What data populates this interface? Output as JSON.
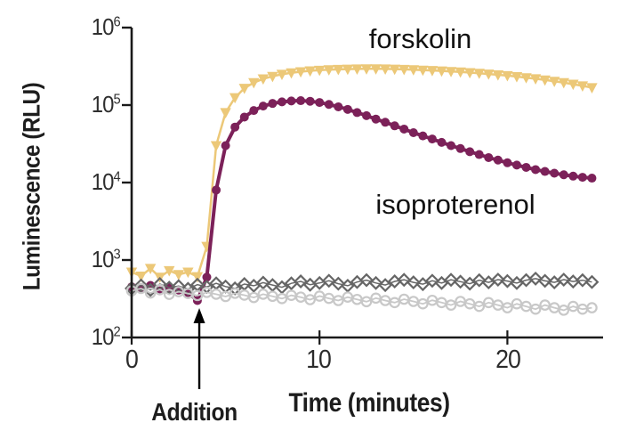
{
  "chart_data": {
    "type": "line",
    "title": "",
    "x_axis": {
      "label": "Time (minutes)",
      "ticks": [
        0,
        10,
        20
      ],
      "range": [
        0,
        25.1
      ]
    },
    "y_axis": {
      "label": "Luminescence (RLU)",
      "scale": "log",
      "tick_exponents": [
        2,
        3,
        4,
        5,
        6
      ],
      "range_exponents": [
        2,
        6
      ]
    },
    "annotations": [
      {
        "text": "Addition",
        "x_minutes": 3.6,
        "type": "arrow-up-at-axis"
      }
    ],
    "x": [
      0,
      0.5,
      1,
      1.5,
      2,
      2.5,
      3,
      3.5,
      4,
      4.5,
      5,
      5.5,
      6,
      6.5,
      7,
      7.5,
      8,
      8.5,
      9,
      9.5,
      10,
      10.5,
      11,
      11.5,
      12,
      12.5,
      13,
      13.5,
      14,
      14.5,
      15,
      15.5,
      16,
      16.5,
      17,
      17.5,
      18,
      18.5,
      19,
      19.5,
      20,
      20.5,
      21,
      21.5,
      22,
      22.5,
      23,
      23.5,
      24,
      24.5
    ],
    "series": [
      {
        "name": "forskolin",
        "label": "forskolin",
        "marker": "triangle-down",
        "color": "#ECC878",
        "values": [
          700,
          620,
          780,
          600,
          730,
          650,
          700,
          610,
          1500,
          30000,
          80000,
          125000,
          165000,
          195000,
          218000,
          235000,
          250000,
          261000,
          270000,
          277000,
          282000,
          286000,
          289000,
          291000,
          293000,
          294000,
          294000,
          293000,
          291000,
          289000,
          286000,
          283000,
          280000,
          276000,
          272000,
          268000,
          263000,
          258000,
          252000,
          246000,
          240000,
          233000,
          226000,
          219000,
          211000,
          203000,
          195000,
          186000,
          177000,
          168000
        ]
      },
      {
        "name": "isoproterenol",
        "label": "isoproterenol",
        "marker": "circle-filled",
        "color": "#7C2159",
        "values": [
          450,
          420,
          470,
          400,
          440,
          410,
          380,
          300,
          600,
          8000,
          30000,
          52000,
          70000,
          85000,
          97000,
          105000,
          110000,
          113000,
          114000,
          112000,
          108000,
          102000,
          95000,
          88000,
          80000,
          73000,
          66000,
          60000,
          54000,
          49000,
          44000,
          40000,
          36500,
          33000,
          30000,
          27500,
          25000,
          23000,
          21000,
          19500,
          18000,
          16800,
          15700,
          14700,
          13900,
          13200,
          12600,
          12100,
          11700,
          11400
        ]
      },
      {
        "name": "control-diamonds",
        "label": "",
        "marker": "diamond-open",
        "color": "#666666",
        "values": [
          430,
          470,
          410,
          490,
          440,
          460,
          425,
          480,
          450,
          500,
          455,
          430,
          490,
          465,
          510,
          475,
          445,
          500,
          530,
          480,
          505,
          540,
          495,
          465,
          520,
          550,
          505,
          475,
          530,
          555,
          515,
          488,
          540,
          505,
          555,
          525,
          495,
          548,
          515,
          558,
          535,
          505,
          550,
          575,
          538,
          515,
          558,
          528,
          548,
          520
        ]
      },
      {
        "name": "control-circles",
        "label": "",
        "marker": "circle-open",
        "color": "#C8C8C8",
        "values": [
          400,
          430,
          375,
          415,
          360,
          390,
          370,
          348,
          382,
          362,
          338,
          372,
          352,
          328,
          362,
          340,
          318,
          350,
          332,
          308,
          342,
          320,
          300,
          332,
          310,
          290,
          322,
          300,
          282,
          312,
          292,
          272,
          302,
          282,
          262,
          292,
          272,
          252,
          282,
          262,
          242,
          272,
          252,
          232,
          262,
          242,
          225,
          252,
          232,
          242
        ]
      }
    ],
    "layout": {
      "axis_color": "#1a1a1a",
      "background": "#ffffff",
      "legend": "inline-text-labels",
      "grid": false
    }
  }
}
